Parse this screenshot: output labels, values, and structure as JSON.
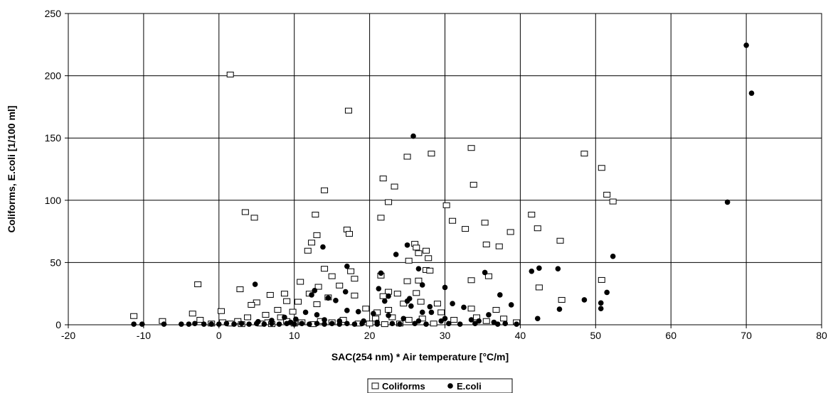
{
  "chart_data": {
    "type": "scatter",
    "title": "",
    "xlabel": "SAC(254 nm) * Air temperature [°C/m]",
    "ylabel": "Coliforms, E.coli [1/100 ml]",
    "xlim": [
      -20,
      80
    ],
    "ylim": [
      0,
      250
    ],
    "x_ticks": [
      -20,
      -10,
      0,
      10,
      20,
      30,
      40,
      50,
      60,
      70,
      80
    ],
    "y_ticks": [
      0,
      50,
      100,
      150,
      200,
      250
    ],
    "grid": true,
    "legend_position": "bottom-center",
    "series": [
      {
        "name": "Coliforms",
        "marker": "open-square",
        "color": "#000000",
        "points": [
          [
            1.5,
            201
          ],
          [
            17.2,
            172
          ],
          [
            28.2,
            137.5
          ],
          [
            33.5,
            142
          ],
          [
            25,
            135
          ],
          [
            48.5,
            137.5
          ],
          [
            50.8,
            126
          ],
          [
            21.8,
            117.5
          ],
          [
            23.3,
            111
          ],
          [
            14,
            108
          ],
          [
            33.8,
            112.5
          ],
          [
            51.5,
            104.5
          ],
          [
            52.3,
            99
          ],
          [
            22.5,
            98.5
          ],
          [
            30.2,
            96
          ],
          [
            3.5,
            90.5
          ],
          [
            4.7,
            86
          ],
          [
            12.8,
            88.5
          ],
          [
            21.5,
            86
          ],
          [
            41.5,
            88.5
          ],
          [
            31,
            83.5
          ],
          [
            35.3,
            82
          ],
          [
            32.7,
            77
          ],
          [
            42.3,
            77.5
          ],
          [
            17,
            76.5
          ],
          [
            17.3,
            73
          ],
          [
            38.7,
            74.5
          ],
          [
            13,
            72
          ],
          [
            12.3,
            66
          ],
          [
            45.3,
            67.5
          ],
          [
            26,
            65
          ],
          [
            35.5,
            64.5
          ],
          [
            37.2,
            63
          ],
          [
            26.2,
            62
          ],
          [
            11.8,
            59.5
          ],
          [
            27.5,
            59.5
          ],
          [
            26.5,
            57.5
          ],
          [
            27.8,
            53.5
          ],
          [
            25.2,
            51.5
          ],
          [
            14,
            45
          ],
          [
            27.5,
            44
          ],
          [
            17.5,
            43
          ],
          [
            28,
            43.5
          ],
          [
            15,
            39
          ],
          [
            21.5,
            39.5
          ],
          [
            18,
            37
          ],
          [
            35.8,
            39
          ],
          [
            10.8,
            34.5
          ],
          [
            25,
            35
          ],
          [
            26.5,
            35.5
          ],
          [
            33.5,
            35.8
          ],
          [
            16,
            31.5
          ],
          [
            13.2,
            30.5
          ],
          [
            42.5,
            30
          ],
          [
            50.8,
            36
          ],
          [
            -2.8,
            32.5
          ],
          [
            2.8,
            28.5
          ],
          [
            12,
            25
          ],
          [
            6.8,
            24
          ],
          [
            8.7,
            25
          ],
          [
            22.5,
            26.5
          ],
          [
            23.7,
            25
          ],
          [
            26.2,
            25.5
          ],
          [
            18,
            23.5
          ],
          [
            21.8,
            23
          ],
          [
            14.5,
            22
          ],
          [
            9,
            19
          ],
          [
            10.5,
            18.5
          ],
          [
            13,
            16.5
          ],
          [
            5,
            18
          ],
          [
            4.3,
            16
          ],
          [
            33.5,
            13
          ],
          [
            36.8,
            12
          ],
          [
            37.8,
            5
          ],
          [
            45.5,
            20
          ],
          [
            7.8,
            12
          ],
          [
            0.3,
            11
          ],
          [
            9.8,
            10.5
          ],
          [
            19.5,
            13
          ],
          [
            20.8,
            5
          ],
          [
            21,
            10
          ],
          [
            22.5,
            12
          ],
          [
            24.5,
            17
          ],
          [
            26.8,
            18.5
          ],
          [
            29,
            17
          ],
          [
            29.5,
            10
          ],
          [
            -3.5,
            9
          ],
          [
            3.8,
            6
          ],
          [
            6.2,
            8
          ],
          [
            8.2,
            6
          ],
          [
            -11.3,
            7
          ],
          [
            -7.5,
            3
          ],
          [
            -2.5,
            4
          ],
          [
            0.5,
            2
          ],
          [
            2.5,
            3
          ],
          [
            6.5,
            2
          ],
          [
            9,
            3
          ],
          [
            11,
            2
          ],
          [
            13.5,
            3
          ],
          [
            15,
            2
          ],
          [
            16.5,
            4
          ],
          [
            23,
            6
          ],
          [
            25.2,
            4
          ],
          [
            27,
            5
          ],
          [
            31.2,
            4
          ],
          [
            34.2,
            6
          ],
          [
            35.5,
            3
          ],
          [
            39.5,
            2
          ],
          [
            -1,
            1
          ],
          [
            1.5,
            1
          ],
          [
            3,
            0.5
          ],
          [
            5.5,
            1
          ],
          [
            7,
            0.5
          ],
          [
            10,
            1
          ],
          [
            12.5,
            0.5
          ],
          [
            18.5,
            1
          ],
          [
            20,
            1
          ],
          [
            22,
            0.5
          ],
          [
            24,
            1
          ],
          [
            28.5,
            1
          ]
        ]
      },
      {
        "name": "E.coli",
        "marker": "filled-circle",
        "color": "#000000",
        "points": [
          [
            70,
            224.5
          ],
          [
            70.7,
            186
          ],
          [
            67.5,
            98.5
          ],
          [
            25.8,
            151.5
          ],
          [
            25,
            64
          ],
          [
            13.8,
            62.5
          ],
          [
            52.3,
            55
          ],
          [
            23.5,
            56.5
          ],
          [
            17,
            47
          ],
          [
            26.5,
            45
          ],
          [
            42.5,
            45.5
          ],
          [
            45,
            45
          ],
          [
            41.5,
            43
          ],
          [
            21.5,
            41.5
          ],
          [
            35.3,
            42
          ],
          [
            4.8,
            32.5
          ],
          [
            27,
            32
          ],
          [
            30,
            30
          ],
          [
            21.2,
            29
          ],
          [
            16.8,
            26.5
          ],
          [
            12.7,
            27.5
          ],
          [
            51.5,
            26
          ],
          [
            37.3,
            24
          ],
          [
            22.5,
            23
          ],
          [
            25.3,
            21
          ],
          [
            12.3,
            24
          ],
          [
            14.5,
            21.5
          ],
          [
            15.5,
            19.5
          ],
          [
            28,
            14.5
          ],
          [
            31,
            17
          ],
          [
            38.8,
            16
          ],
          [
            48.5,
            20
          ],
          [
            22,
            19
          ],
          [
            25,
            19
          ],
          [
            25.5,
            15
          ],
          [
            32.5,
            14
          ],
          [
            50.7,
            17.5
          ],
          [
            50.7,
            13
          ],
          [
            45.2,
            12.5
          ],
          [
            17,
            11.5
          ],
          [
            18.5,
            10.5
          ],
          [
            20.5,
            9
          ],
          [
            22.5,
            7.5
          ],
          [
            27,
            10
          ],
          [
            28.2,
            10
          ],
          [
            35.8,
            8
          ],
          [
            33.5,
            4
          ],
          [
            42.3,
            5
          ],
          [
            36.5,
            2
          ],
          [
            24.5,
            5
          ],
          [
            29.5,
            3
          ],
          [
            11.5,
            10
          ],
          [
            13,
            8
          ],
          [
            8.7,
            6
          ],
          [
            10.2,
            4.5
          ],
          [
            7,
            3.5
          ],
          [
            5.2,
            2.5
          ],
          [
            -11.3,
            0.5
          ],
          [
            -10.2,
            0.5
          ],
          [
            -7.3,
            0.5
          ],
          [
            -5,
            0.5
          ],
          [
            -4,
            0.5
          ],
          [
            -3.2,
            1
          ],
          [
            -2,
            0.5
          ],
          [
            -1,
            0.5
          ],
          [
            0,
            0.5
          ],
          [
            1,
            1
          ],
          [
            2,
            0.5
          ],
          [
            3,
            1
          ],
          [
            4,
            0.5
          ],
          [
            5,
            1
          ],
          [
            6,
            0.5
          ],
          [
            7,
            1
          ],
          [
            8,
            0.5
          ],
          [
            9,
            1
          ],
          [
            10,
            0.5
          ],
          [
            11,
            1
          ],
          [
            12,
            0.5
          ],
          [
            13,
            1
          ],
          [
            14,
            0.5
          ],
          [
            15,
            1
          ],
          [
            16,
            0.5
          ],
          [
            17,
            1
          ],
          [
            18,
            0.5
          ],
          [
            19,
            1
          ],
          [
            21,
            0.5
          ],
          [
            23,
            1
          ],
          [
            24,
            0.5
          ],
          [
            26,
            1
          ],
          [
            27.5,
            0.5
          ],
          [
            30.5,
            1
          ],
          [
            32,
            0.5
          ],
          [
            34,
            1
          ],
          [
            37,
            0.5
          ],
          [
            38,
            1
          ],
          [
            39.5,
            0.5
          ],
          [
            19.2,
            3
          ],
          [
            21,
            2
          ],
          [
            30,
            5
          ],
          [
            34.5,
            3
          ],
          [
            14,
            4
          ],
          [
            16,
            3
          ],
          [
            9.5,
            2
          ],
          [
            26.5,
            3
          ]
        ]
      }
    ]
  }
}
